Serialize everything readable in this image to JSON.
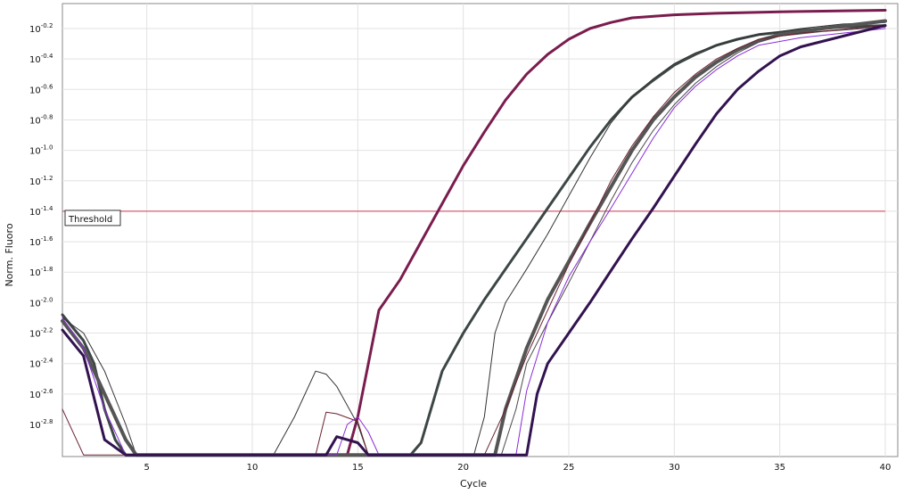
{
  "chart_data": {
    "type": "line",
    "xlabel": "Cycle",
    "ylabel": "Norm. Fluoro",
    "xlim": [
      1,
      40
    ],
    "ylim": [
      -3.0,
      -0.1
    ],
    "y_scale": "log10",
    "grid": true,
    "x_ticks": [
      5,
      10,
      15,
      20,
      25,
      30,
      35,
      40
    ],
    "y_ticks": [
      {
        "value": -0.2,
        "base": "10",
        "exp": "-0.2"
      },
      {
        "value": -0.4,
        "base": "10",
        "exp": "-0.4"
      },
      {
        "value": -0.6,
        "base": "10",
        "exp": "-0.6"
      },
      {
        "value": -0.8,
        "base": "10",
        "exp": "-0.8"
      },
      {
        "value": -1.0,
        "base": "10",
        "exp": "-1.0"
      },
      {
        "value": -1.2,
        "base": "10",
        "exp": "-1.2"
      },
      {
        "value": -1.4,
        "base": "10",
        "exp": "-1.4"
      },
      {
        "value": -1.6,
        "base": "10",
        "exp": "-1.6"
      },
      {
        "value": -1.8,
        "base": "10",
        "exp": "-1.8"
      },
      {
        "value": -2.0,
        "base": "10",
        "exp": "-2.0"
      },
      {
        "value": -2.2,
        "base": "10",
        "exp": "-2.2"
      },
      {
        "value": -2.4,
        "base": "10",
        "exp": "-2.4"
      },
      {
        "value": -2.6,
        "base": "10",
        "exp": "-2.6"
      },
      {
        "value": -2.8,
        "base": "10",
        "exp": "-2.8"
      }
    ],
    "threshold": {
      "label": "Threshold",
      "value": -1.4,
      "color": "#d03a55"
    },
    "series": [
      {
        "color": "#7a1d4e",
        "width": 3,
        "points": [
          [
            14.5,
            -3.0
          ],
          [
            15,
            -2.75
          ],
          [
            15.5,
            -2.4
          ],
          [
            16,
            -2.05
          ],
          [
            17,
            -1.85
          ],
          [
            18,
            -1.6
          ],
          [
            19,
            -1.35
          ],
          [
            20,
            -1.1
          ],
          [
            21,
            -0.88
          ],
          [
            22,
            -0.67
          ],
          [
            23,
            -0.5
          ],
          [
            24,
            -0.37
          ],
          [
            25,
            -0.27
          ],
          [
            26,
            -0.2
          ],
          [
            27,
            -0.16
          ],
          [
            28,
            -0.13
          ],
          [
            30,
            -0.11
          ],
          [
            32,
            -0.1
          ],
          [
            35,
            -0.09
          ],
          [
            40,
            -0.08
          ]
        ]
      },
      {
        "color": "#3d4646",
        "width": 3,
        "points": [
          [
            1,
            -2.08
          ],
          [
            2,
            -2.25
          ],
          [
            2.5,
            -2.4
          ],
          [
            3,
            -2.7
          ],
          [
            3.5,
            -2.9
          ],
          [
            4,
            -3.0
          ],
          [
            17,
            -3.0
          ],
          [
            17.5,
            -3.0
          ],
          [
            18,
            -2.92
          ],
          [
            19,
            -2.45
          ],
          [
            20,
            -2.2
          ],
          [
            21,
            -1.98
          ],
          [
            22,
            -1.78
          ],
          [
            23,
            -1.58
          ],
          [
            24,
            -1.38
          ],
          [
            25,
            -1.18
          ],
          [
            26,
            -0.98
          ],
          [
            27,
            -0.8
          ],
          [
            28,
            -0.65
          ],
          [
            29,
            -0.54
          ],
          [
            30,
            -0.44
          ],
          [
            31,
            -0.37
          ],
          [
            32,
            -0.31
          ],
          [
            33,
            -0.27
          ],
          [
            34,
            -0.24
          ],
          [
            36,
            -0.21
          ],
          [
            38,
            -0.19
          ],
          [
            40,
            -0.18
          ]
        ]
      },
      {
        "color": "#333333",
        "width": 1,
        "points": [
          [
            1,
            -2.1
          ],
          [
            2,
            -2.2
          ],
          [
            3,
            -2.45
          ],
          [
            4,
            -2.8
          ],
          [
            4.5,
            -3.0
          ],
          [
            11,
            -3.0
          ],
          [
            12,
            -2.75
          ],
          [
            13,
            -2.45
          ],
          [
            13.5,
            -2.47
          ],
          [
            14,
            -2.55
          ],
          [
            15,
            -2.8
          ],
          [
            15.5,
            -3.0
          ],
          [
            20.5,
            -3.0
          ],
          [
            21,
            -2.75
          ],
          [
            21.5,
            -2.2
          ],
          [
            22,
            -2.0
          ],
          [
            23,
            -1.78
          ],
          [
            24,
            -1.55
          ],
          [
            25,
            -1.3
          ],
          [
            26,
            -1.05
          ],
          [
            27,
            -0.82
          ],
          [
            28,
            -0.65
          ],
          [
            29,
            -0.53
          ],
          [
            30,
            -0.43
          ],
          [
            31,
            -0.36
          ],
          [
            32,
            -0.31
          ],
          [
            33,
            -0.27
          ],
          [
            34,
            -0.24
          ],
          [
            36,
            -0.2
          ],
          [
            38,
            -0.17
          ],
          [
            40,
            -0.16
          ]
        ]
      },
      {
        "color": "#555555",
        "width": 4,
        "points": [
          [
            1,
            -2.12
          ],
          [
            2,
            -2.3
          ],
          [
            3,
            -2.6
          ],
          [
            4,
            -2.9
          ],
          [
            4.5,
            -3.0
          ],
          [
            21,
            -3.0
          ],
          [
            21.5,
            -3.0
          ],
          [
            22,
            -2.7
          ],
          [
            23,
            -2.3
          ],
          [
            24,
            -1.98
          ],
          [
            25,
            -1.73
          ],
          [
            26,
            -1.48
          ],
          [
            27,
            -1.24
          ],
          [
            28,
            -1.0
          ],
          [
            29,
            -0.8
          ],
          [
            30,
            -0.65
          ],
          [
            31,
            -0.52
          ],
          [
            32,
            -0.42
          ],
          [
            33,
            -0.34
          ],
          [
            34,
            -0.28
          ],
          [
            35,
            -0.24
          ],
          [
            37,
            -0.2
          ],
          [
            40,
            -0.15
          ]
        ]
      },
      {
        "color": "#4a4a4a",
        "width": 1,
        "points": [
          [
            21.8,
            -3.0
          ],
          [
            22.5,
            -2.7
          ],
          [
            23,
            -2.4
          ],
          [
            24,
            -2.13
          ],
          [
            25,
            -1.87
          ],
          [
            26,
            -1.6
          ],
          [
            27,
            -1.33
          ],
          [
            28,
            -1.08
          ],
          [
            29,
            -0.87
          ],
          [
            30,
            -0.7
          ],
          [
            31,
            -0.56
          ],
          [
            32,
            -0.45
          ],
          [
            33,
            -0.36
          ],
          [
            34,
            -0.29
          ],
          [
            35,
            -0.25
          ],
          [
            37,
            -0.22
          ],
          [
            40,
            -0.19
          ]
        ]
      },
      {
        "color": "#6a2230",
        "width": 1,
        "points": [
          [
            1,
            -2.7
          ],
          [
            2,
            -3.0
          ],
          [
            13,
            -3.0
          ],
          [
            13.5,
            -2.72
          ],
          [
            14,
            -2.73
          ],
          [
            15,
            -2.78
          ],
          [
            15.5,
            -3.0
          ],
          [
            21,
            -3.0
          ],
          [
            22,
            -2.7
          ],
          [
            23,
            -2.35
          ],
          [
            24,
            -2.05
          ],
          [
            25,
            -1.75
          ],
          [
            26,
            -1.48
          ],
          [
            27,
            -1.2
          ],
          [
            28,
            -0.97
          ],
          [
            29,
            -0.78
          ],
          [
            30,
            -0.62
          ],
          [
            31,
            -0.5
          ],
          [
            32,
            -0.4
          ],
          [
            33,
            -0.33
          ],
          [
            34,
            -0.27
          ],
          [
            36,
            -0.23
          ],
          [
            40,
            -0.18
          ]
        ]
      },
      {
        "color": "#8a2bd8",
        "width": 1,
        "points": [
          [
            1,
            -2.1
          ],
          [
            2,
            -2.3
          ],
          [
            3,
            -2.7
          ],
          [
            4,
            -3.0
          ],
          [
            14,
            -3.0
          ],
          [
            14.5,
            -2.8
          ],
          [
            15,
            -2.75
          ],
          [
            15.5,
            -2.85
          ],
          [
            16,
            -3.0
          ],
          [
            22,
            -3.0
          ],
          [
            22.5,
            -3.0
          ],
          [
            23,
            -2.58
          ],
          [
            24,
            -2.13
          ],
          [
            25,
            -1.83
          ],
          [
            26,
            -1.6
          ],
          [
            27,
            -1.38
          ],
          [
            28,
            -1.15
          ],
          [
            29,
            -0.92
          ],
          [
            30,
            -0.72
          ],
          [
            31,
            -0.58
          ],
          [
            32,
            -0.47
          ],
          [
            33,
            -0.38
          ],
          [
            34,
            -0.31
          ],
          [
            36,
            -0.26
          ],
          [
            38,
            -0.23
          ],
          [
            40,
            -0.2
          ]
        ]
      },
      {
        "color": "#32134f",
        "width": 3,
        "points": [
          [
            1,
            -2.18
          ],
          [
            2,
            -2.35
          ],
          [
            3,
            -2.9
          ],
          [
            4,
            -3.0
          ],
          [
            13.5,
            -3.0
          ],
          [
            14,
            -2.88
          ],
          [
            15,
            -2.92
          ],
          [
            15.5,
            -3.0
          ],
          [
            22.5,
            -3.0
          ],
          [
            23,
            -3.0
          ],
          [
            23.5,
            -2.6
          ],
          [
            24,
            -2.4
          ],
          [
            25,
            -2.2
          ],
          [
            26,
            -2.0
          ],
          [
            27,
            -1.79
          ],
          [
            28,
            -1.58
          ],
          [
            29,
            -1.38
          ],
          [
            30,
            -1.17
          ],
          [
            31,
            -0.96
          ],
          [
            32,
            -0.76
          ],
          [
            33,
            -0.6
          ],
          [
            34,
            -0.48
          ],
          [
            35,
            -0.38
          ],
          [
            36,
            -0.32
          ],
          [
            38,
            -0.25
          ],
          [
            40,
            -0.18
          ]
        ]
      }
    ]
  }
}
